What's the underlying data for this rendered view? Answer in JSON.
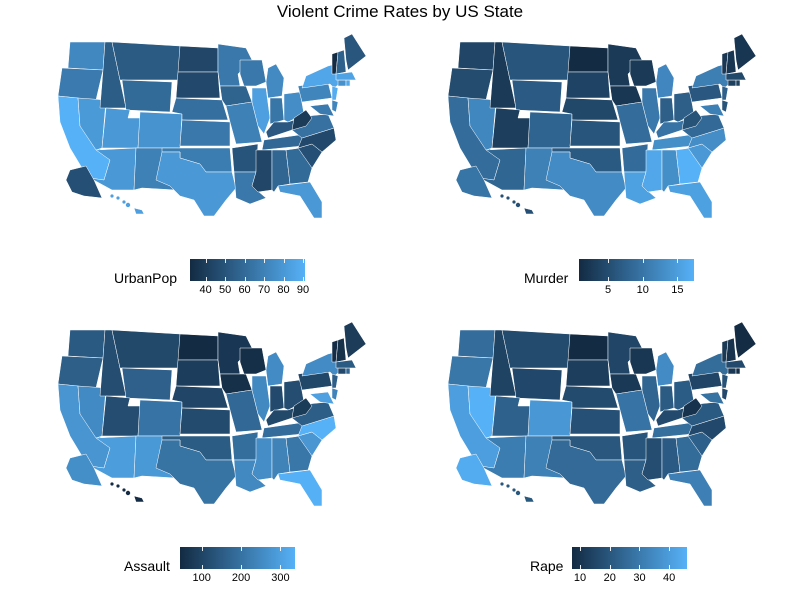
{
  "title": "Violent Crime Rates by US State",
  "colors": {
    "low": "#132B43",
    "high": "#56B1F7"
  },
  "chart_data": [
    {
      "type": "choropleth",
      "variable": "UrbanPop",
      "legend_title": "UrbanPop",
      "scale_range": [
        32,
        91
      ],
      "ticks": [
        {
          "value": 40,
          "label": "40"
        },
        {
          "value": 50,
          "label": "50"
        },
        {
          "value": 60,
          "label": "60"
        },
        {
          "value": 70,
          "label": "70"
        },
        {
          "value": 80,
          "label": "80"
        },
        {
          "value": 90,
          "label": "90"
        }
      ],
      "regions": {
        "WA": 73,
        "OR": 67,
        "CA": 91,
        "NV": 81,
        "ID": 54,
        "MT": 53,
        "WY": 60,
        "UT": 80,
        "AZ": 80,
        "CO": 78,
        "NM": 70,
        "ND": 44,
        "SD": 45,
        "NE": 62,
        "KS": 66,
        "OK": 68,
        "TX": 80,
        "MN": 66,
        "IA": 57,
        "MO": 70,
        "AR": 50,
        "LA": 66,
        "WI": 66,
        "IL": 83,
        "MI": 74,
        "IN": 65,
        "OH": 75,
        "KY": 52,
        "TN": 59,
        "MS": 44,
        "AL": 58,
        "GA": 60,
        "FL": 80,
        "SC": 48,
        "NC": 45,
        "VA": 63,
        "WV": 39,
        "PA": 72,
        "NY": 86,
        "MD": 67,
        "DE": 72,
        "NJ": 89,
        "CT": 77,
        "RI": 87,
        "MA": 85,
        "VT": 32,
        "NH": 56,
        "ME": 51,
        "AK": 48,
        "HI": 83
      }
    },
    {
      "type": "choropleth",
      "variable": "Murder",
      "legend_title": "Murder",
      "scale_range": [
        0.8,
        17.4
      ],
      "ticks": [
        {
          "value": 5,
          "label": "5"
        },
        {
          "value": 10,
          "label": "10"
        },
        {
          "value": 15,
          "label": "15"
        }
      ],
      "regions": {
        "WA": 4.0,
        "OR": 4.9,
        "CA": 9.0,
        "NV": 12.2,
        "ID": 2.6,
        "MT": 6.0,
        "WY": 6.8,
        "UT": 3.2,
        "AZ": 8.1,
        "CO": 7.9,
        "NM": 11.4,
        "ND": 0.8,
        "SD": 3.8,
        "NE": 4.3,
        "KS": 6.0,
        "OK": 6.6,
        "TX": 12.7,
        "MN": 2.7,
        "IA": 2.2,
        "MO": 9.0,
        "AR": 8.8,
        "LA": 15.4,
        "WI": 2.6,
        "IL": 10.4,
        "MI": 12.1,
        "IN": 7.2,
        "OH": 7.3,
        "KY": 9.7,
        "TN": 13.2,
        "MS": 16.1,
        "AL": 13.2,
        "GA": 17.4,
        "FL": 15.4,
        "SC": 14.4,
        "NC": 13.0,
        "VA": 8.5,
        "WV": 5.7,
        "PA": 6.3,
        "NY": 11.1,
        "MD": 11.3,
        "DE": 5.9,
        "NJ": 7.4,
        "CT": 3.3,
        "RI": 3.4,
        "MA": 4.4,
        "VT": 2.2,
        "NH": 2.1,
        "ME": 2.1,
        "AK": 10.0,
        "HI": 5.3
      }
    },
    {
      "type": "choropleth",
      "variable": "Assault",
      "legend_title": "Assault",
      "scale_range": [
        45,
        337
      ],
      "ticks": [
        {
          "value": 100,
          "label": "100"
        },
        {
          "value": 200,
          "label": "200"
        },
        {
          "value": 300,
          "label": "300"
        }
      ],
      "regions": {
        "WA": 145,
        "OR": 159,
        "CA": 276,
        "NV": 252,
        "ID": 120,
        "MT": 109,
        "WY": 161,
        "UT": 120,
        "AZ": 294,
        "CO": 204,
        "NM": 285,
        "ND": 45,
        "SD": 86,
        "NE": 102,
        "KS": 115,
        "OK": 151,
        "TX": 201,
        "MN": 72,
        "IA": 56,
        "MO": 178,
        "AR": 190,
        "LA": 249,
        "WI": 53,
        "IL": 249,
        "MI": 255,
        "IN": 113,
        "OH": 120,
        "KY": 109,
        "TN": 188,
        "MS": 259,
        "AL": 236,
        "GA": 211,
        "FL": 335,
        "SC": 279,
        "NC": 337,
        "VA": 156,
        "WV": 81,
        "PA": 106,
        "NY": 254,
        "MD": 300,
        "DE": 238,
        "NJ": 159,
        "CT": 110,
        "RI": 174,
        "MA": 149,
        "VT": 48,
        "NH": 57,
        "ME": 83,
        "AK": 263,
        "HI": 46
      }
    },
    {
      "type": "choropleth",
      "variable": "Rape",
      "legend_title": "Rape",
      "scale_range": [
        7.3,
        46.0
      ],
      "ticks": [
        {
          "value": 10,
          "label": "10"
        },
        {
          "value": 20,
          "label": "20"
        },
        {
          "value": 30,
          "label": "30"
        },
        {
          "value": 40,
          "label": "40"
        }
      ],
      "regions": {
        "WA": 26.2,
        "OR": 29.3,
        "CA": 40.6,
        "NV": 46.0,
        "ID": 14.2,
        "MT": 16.4,
        "WY": 15.6,
        "UT": 22.9,
        "AZ": 31.0,
        "CO": 38.7,
        "NM": 32.1,
        "ND": 7.3,
        "SD": 12.8,
        "NE": 16.5,
        "KS": 18.0,
        "OK": 20.0,
        "TX": 25.5,
        "MN": 14.9,
        "IA": 11.3,
        "MO": 28.2,
        "AR": 19.5,
        "LA": 22.2,
        "WI": 10.8,
        "IL": 24.0,
        "MI": 35.1,
        "IN": 21.0,
        "OH": 21.4,
        "KY": 16.3,
        "TN": 26.9,
        "MS": 17.1,
        "AL": 21.2,
        "GA": 25.8,
        "FL": 31.9,
        "SC": 22.5,
        "NC": 16.1,
        "VA": 20.7,
        "WV": 9.3,
        "PA": 14.9,
        "NY": 26.1,
        "MD": 27.8,
        "DE": 15.8,
        "NJ": 18.8,
        "CT": 11.1,
        "RI": 8.3,
        "MA": 16.3,
        "VT": 11.2,
        "NH": 9.5,
        "ME": 7.8,
        "AK": 44.5,
        "HI": 20.2
      }
    }
  ]
}
